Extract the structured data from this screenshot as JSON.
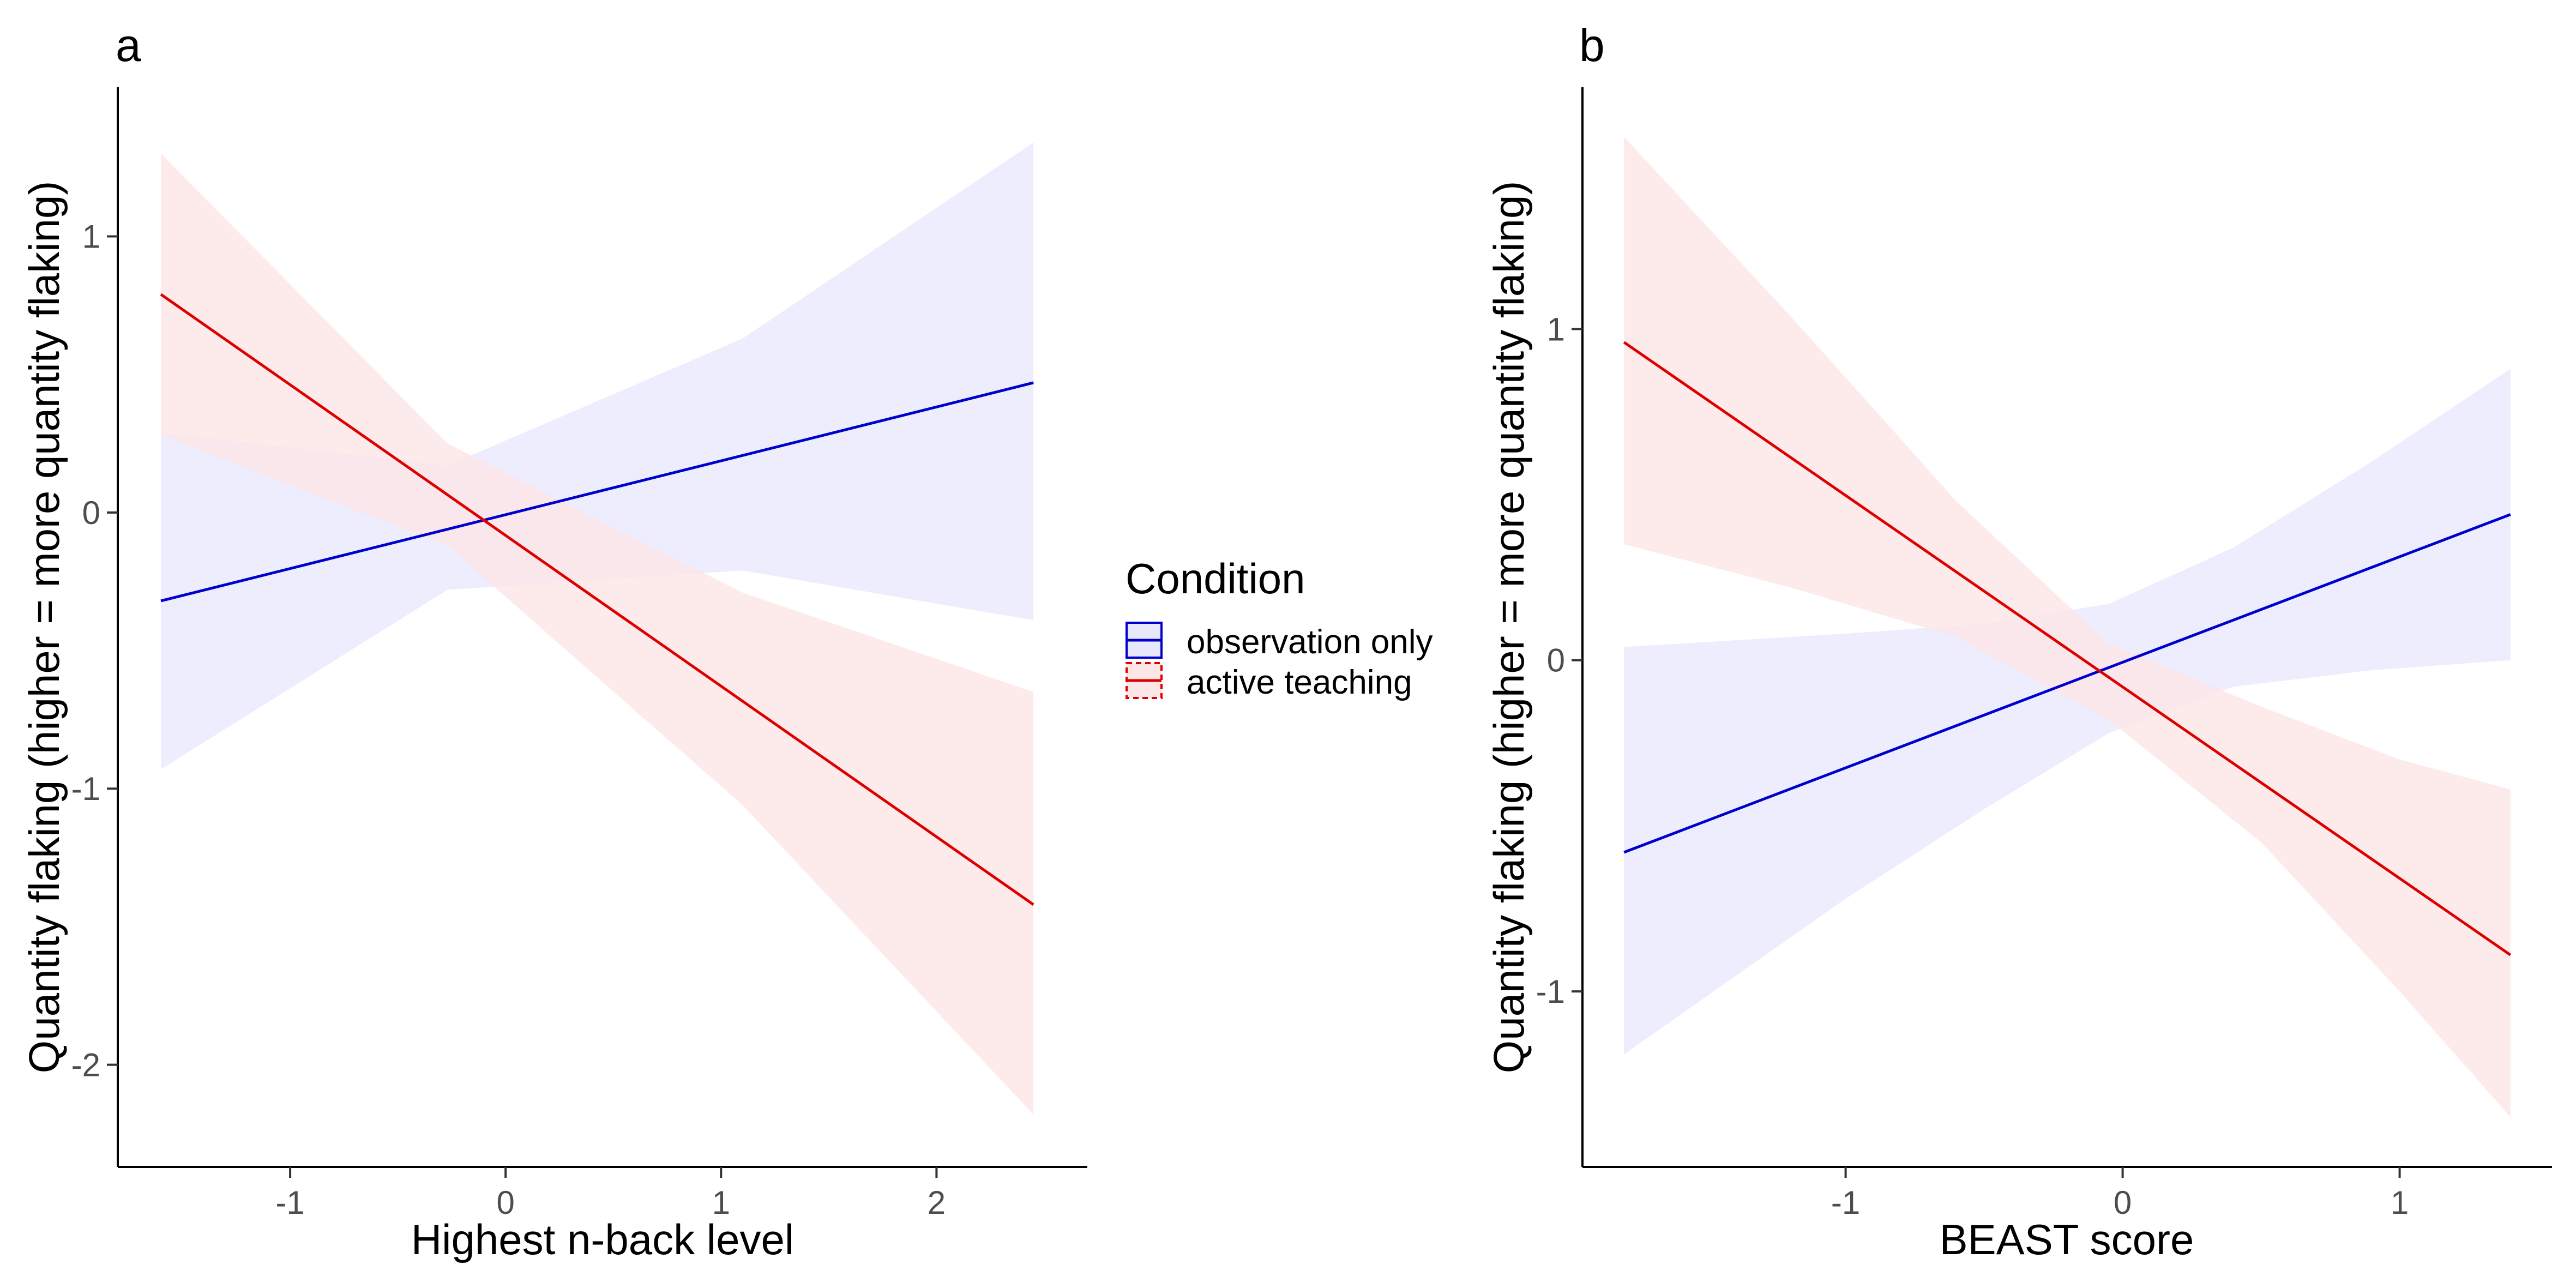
{
  "colors": {
    "observation": "#0000cc",
    "observation_band": "#e8e8fc",
    "active": "#dd0000",
    "active_band": "#fde6e6"
  },
  "legend": {
    "title": "Condition",
    "items": [
      {
        "label": "observation only",
        "color": "#0000cc"
      },
      {
        "label": "active teaching",
        "color": "#dd0000"
      }
    ]
  },
  "chart_data": [
    {
      "panel": "a",
      "type": "line",
      "xlabel": "Highest n-back level",
      "ylabel": "Quantity flaking (higher = more quantity flaking)",
      "xlim": [
        -1.8,
        2.7
      ],
      "ylim": [
        -2.37,
        1.54
      ],
      "xticks": [
        -1,
        0,
        1,
        2
      ],
      "xtick_labels": [
        "-1",
        "0",
        "1",
        "2"
      ],
      "yticks": [
        -2,
        -1,
        0,
        1
      ],
      "ytick_labels": [
        "-2",
        "-1",
        "0",
        "1"
      ],
      "grid": false,
      "series": [
        {
          "name": "observation only",
          "color": "#0000cc",
          "x": [
            -1.6,
            2.45
          ],
          "y": [
            -0.32,
            0.47
          ],
          "band": {
            "x": [
              -1.6,
              -0.27,
              1.1,
              2.45
            ],
            "lower": [
              -0.93,
              -0.28,
              -0.21,
              -0.39
            ],
            "upper": [
              0.29,
              0.17,
              0.63,
              1.34
            ]
          }
        },
        {
          "name": "active teaching",
          "color": "#dd0000",
          "x": [
            -1.6,
            2.45
          ],
          "y": [
            0.79,
            -1.42
          ],
          "band": {
            "x": [
              -1.6,
              -0.27,
              1.1,
              2.45
            ],
            "lower": [
              0.28,
              -0.12,
              -1.06,
              -2.18
            ],
            "upper": [
              1.3,
              0.25,
              -0.29,
              -0.65
            ]
          }
        }
      ]
    },
    {
      "panel": "b",
      "type": "line",
      "xlabel": "BEAST score",
      "ylabel": "Quantity flaking (higher = more quantity flaking)",
      "xlim": [
        -1.95,
        1.55
      ],
      "ylim": [
        -1.53,
        1.73
      ],
      "xticks": [
        -1,
        0,
        1
      ],
      "xtick_labels": [
        "-1",
        "0",
        "1"
      ],
      "yticks": [
        -1,
        0,
        1
      ],
      "ytick_labels": [
        "-1",
        "0",
        "1"
      ],
      "grid": false,
      "series": [
        {
          "name": "observation only",
          "color": "#0000cc",
          "x": [
            -1.8,
            1.4
          ],
          "y": [
            -0.58,
            0.44
          ],
          "band": {
            "x": [
              -1.8,
              -1.0,
              -0.5,
              -0.05,
              0.4,
              0.9,
              1.4
            ],
            "lower": [
              -1.19,
              -0.72,
              -0.45,
              -0.22,
              -0.08,
              -0.03,
              0.0
            ],
            "upper": [
              0.04,
              0.08,
              0.11,
              0.17,
              0.34,
              0.6,
              0.88
            ]
          }
        },
        {
          "name": "active teaching",
          "color": "#dd0000",
          "x": [
            -1.8,
            1.4
          ],
          "y": [
            0.96,
            -0.89
          ],
          "band": {
            "x": [
              -1.8,
              -1.2,
              -0.6,
              -0.05,
              0.5,
              1.0,
              1.4
            ],
            "lower": [
              0.35,
              0.22,
              0.07,
              -0.18,
              -0.55,
              -1.0,
              -1.38
            ],
            "upper": [
              1.58,
              1.04,
              0.48,
              0.05,
              -0.14,
              -0.3,
              -0.39
            ]
          }
        }
      ]
    }
  ]
}
